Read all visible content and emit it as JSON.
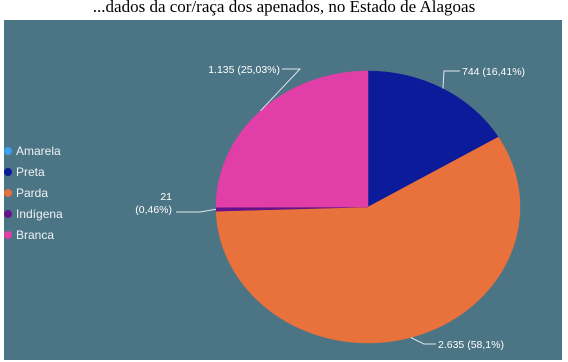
{
  "title": "...dados da cor/raça dos apenados, no Estado de Alagoas",
  "colors": {
    "background": "#4b7484"
  },
  "chart_data": {
    "type": "pie",
    "slices": [
      {
        "label": "Amarela",
        "value": 0,
        "percent": 0,
        "color": "#3aa0f0",
        "data_label": ""
      },
      {
        "label": "Preta",
        "value": 744,
        "percent": 16.41,
        "color": "#0c1b9a",
        "data_label": "744 (16,41%)"
      },
      {
        "label": "Parda",
        "value": 2635,
        "percent": 58.1,
        "color": "#e8713c",
        "data_label": "2.635 (58,1%)"
      },
      {
        "label": "Indígena",
        "value": 21,
        "percent": 0.46,
        "color": "#66128a",
        "data_label": "21 (0,46%)"
      },
      {
        "label": "Branca",
        "value": 1135,
        "percent": 25.03,
        "color": "#e23ea8",
        "data_label": "1.135 (25,03%)"
      }
    ],
    "legend": [
      "Amarela",
      "Preta",
      "Parda",
      "Indígena",
      "Branca"
    ],
    "legend_position": "left"
  }
}
